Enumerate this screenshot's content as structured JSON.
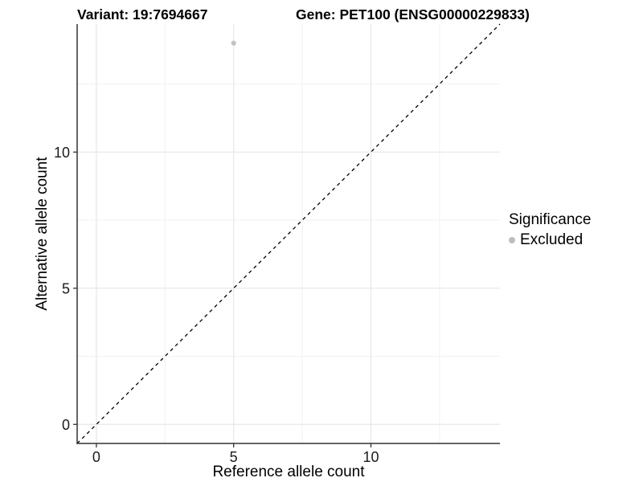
{
  "figure": {
    "background": "#ffffff"
  },
  "chart_data": {
    "type": "scatter",
    "title_left": "Variant: 19:7694667",
    "title_right": "Gene: PET100 (ENSG00000229833)",
    "xlabel": "Reference allele count",
    "ylabel": "Alternative allele count",
    "xlim": [
      -0.7,
      14.7
    ],
    "ylim": [
      -0.7,
      14.7
    ],
    "xticks": [
      0,
      5,
      10
    ],
    "yticks": [
      0,
      5,
      10
    ],
    "xticks_minor": [
      2.5,
      7.5,
      12.5
    ],
    "yticks_minor": [
      2.5,
      7.5,
      12.5
    ],
    "grid": "major and minor, light gray, on white background",
    "series": [
      {
        "name": "Excluded",
        "points": [
          {
            "x": 5,
            "y": 14
          }
        ],
        "color": "#c3c3c3",
        "marker": "circle"
      }
    ],
    "identity_line": {
      "description": "y = x reference line, corner to corner",
      "style": "dashed",
      "color": "#000000",
      "from": [
        -0.7,
        -0.7
      ],
      "to": [
        14.7,
        14.7
      ]
    },
    "legend": {
      "title": "Significance",
      "position": "right",
      "entries": [
        {
          "label": "Excluded",
          "color": "#bdbdbd"
        }
      ]
    },
    "colors": {
      "point": "#c3c3c3",
      "legend_key": "#bdbdbd",
      "grid_major": "#e7e7e7",
      "grid_minor": "#f1f1f1",
      "axis_line": "#333333",
      "tick_mark": "#333333",
      "tick_label": "#1a1a1a",
      "title_text": "#000000"
    }
  }
}
